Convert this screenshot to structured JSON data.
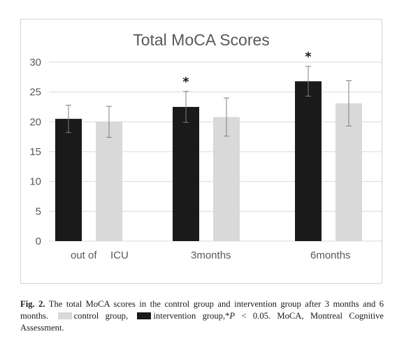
{
  "chart_data": {
    "type": "bar",
    "title": "Total MoCA Scores",
    "xlabel": "",
    "ylabel": "",
    "ylim": [
      0,
      30
    ],
    "yticks": [
      0,
      5,
      10,
      15,
      20,
      25,
      30
    ],
    "grid": true,
    "legend": "none",
    "category_labels": [
      "out of",
      "ICU",
      "3months",
      "6months"
    ],
    "groups": [
      {
        "intervention": {
          "value": 20.5,
          "error": 2.3
        },
        "control": {
          "value": 20.0,
          "error": 2.6
        },
        "significant": false
      },
      {
        "intervention": {
          "value": 22.5,
          "error": 2.6
        },
        "control": {
          "value": 20.8,
          "error": 3.2
        },
        "significant": true
      },
      {
        "intervention": {
          "value": 26.8,
          "error": 2.5
        },
        "control": {
          "value": 23.1,
          "error": 3.8
        },
        "significant": true
      }
    ],
    "significance_marker": "*",
    "colors": {
      "intervention": "#1a1a1a",
      "control": "#d9d9d9",
      "grid": "#d9d9d9",
      "error_bar": "#7f7f7f"
    }
  },
  "caption": {
    "fig_label": "Fig. 2.",
    "text_main": "The total MoCA scores in the control group and intervention group after 3 months and 6 months.",
    "control_label": "control group,",
    "intervention_label": "intervention group,",
    "p_star": "*",
    "p_letter": "P",
    "p_value": "< 0.05.",
    "abbrev": "MoCA, Montreal Cognitive Assessment."
  }
}
